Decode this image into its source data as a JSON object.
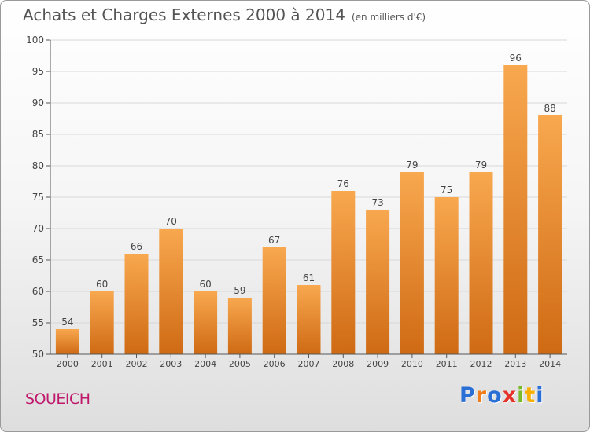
{
  "header": {
    "title": "Achats et Charges Externes 2000 à 2014",
    "subtitle": "(en milliers d'€)"
  },
  "footer": {
    "place": "SOUEICH",
    "brand": "Proxiti",
    "brand_colors": [
      "#2a6fd6",
      "#f07d1a",
      "#2a6fd6",
      "#e6332a",
      "#7ab929",
      "#f7b000",
      "#2a6fd6"
    ]
  },
  "colors": {
    "bar_top": "#f8a84f",
    "bar_bottom": "#cf6a14",
    "axis": "#555555",
    "grid": "#d8d8d8"
  },
  "chart_data": {
    "type": "bar",
    "title": "Achats et Charges Externes 2000 à 2014",
    "subtitle": "(en milliers d'€)",
    "categories": [
      "2000",
      "2001",
      "2002",
      "2003",
      "2004",
      "2005",
      "2006",
      "2007",
      "2008",
      "2009",
      "2010",
      "2011",
      "2012",
      "2013",
      "2014"
    ],
    "values": [
      54,
      60,
      66,
      70,
      60,
      59,
      67,
      61,
      76,
      73,
      79,
      75,
      79,
      96,
      88
    ],
    "ylim": [
      50,
      100
    ],
    "yticks": [
      50,
      55,
      60,
      65,
      70,
      75,
      80,
      85,
      90,
      95,
      100
    ],
    "grid": true,
    "legend": false,
    "data_labels": true
  }
}
